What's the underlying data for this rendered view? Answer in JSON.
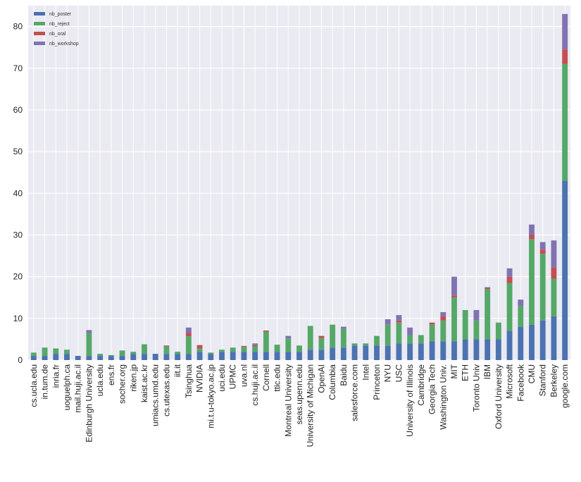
{
  "chart_data": {
    "type": "bar",
    "stacked": true,
    "categories": [
      "cs.ucla.edu",
      "in.tum.de",
      "inria.fr",
      "uoguelph.ca",
      "mail.huji.ac.il",
      "Edinburgh University",
      "ucla.edu",
      "ens.fr",
      "socher.org",
      "riken.jp",
      "kaist.ac.kr",
      "umiacs.umd.edu",
      "cs.utexas.edu",
      "iit.it",
      "Tsinghua",
      "NVIDIA",
      "mi.t.u-tokyo.ac.jp",
      "uci.edu",
      "UPMC",
      "uva.nl",
      "cs.huji.ac.il",
      "Cornell",
      "ttic.edu",
      "Montreal University",
      "seas.upenn.edu",
      "University of Michigan",
      "OpenAI",
      "Columbia",
      "Baidu",
      "salesforce.com",
      "Intel",
      "Princeton",
      "NYU",
      "USC",
      "University of Illinois",
      "Cambridge",
      "Georgia Tech",
      "Washington Univ.",
      "MIT",
      "ETH",
      "Toronto Univ",
      "IBM",
      "Oxford University",
      "Microsoft",
      "Facebook",
      "CMU",
      "Stanford",
      "Berkeley",
      "google.com"
    ],
    "series": [
      {
        "name": "nb_poster",
        "color": "#4c72b0",
        "values": [
          1,
          1,
          1.5,
          1.5,
          1,
          1,
          1,
          1,
          1,
          1.5,
          1.5,
          1.5,
          1.5,
          1.5,
          1.5,
          2,
          1.5,
          2,
          2,
          2,
          2,
          2,
          2,
          2,
          2,
          2.5,
          2.5,
          3,
          3,
          3.5,
          3.5,
          3.5,
          3.5,
          4,
          4,
          4,
          4.5,
          4.5,
          4.5,
          5,
          5,
          5,
          5,
          7,
          8,
          8.5,
          9.5,
          10.5,
          43
        ]
      },
      {
        "name": "nb_reject",
        "color": "#55a868",
        "values": [
          0.8,
          2,
          1.3,
          1,
          0,
          5.5,
          0.5,
          0.2,
          1.3,
          0.5,
          2.3,
          0,
          1.8,
          0.5,
          4.2,
          0.8,
          0.3,
          0.5,
          1,
          1.2,
          1.3,
          4.8,
          1.7,
          3.2,
          1.5,
          5.7,
          2.8,
          5.5,
          4.5,
          0.5,
          0.5,
          2.3,
          5,
          5,
          2,
          2,
          4,
          5,
          10.5,
          7,
          4.5,
          12,
          4,
          11.5,
          5,
          20.5,
          16,
          9,
          28
        ]
      },
      {
        "name": "nb_oral",
        "color": "#c44e52",
        "values": [
          0,
          0,
          0,
          0,
          0,
          0,
          0,
          0,
          0,
          0,
          0,
          0,
          0.2,
          0,
          0.8,
          0.8,
          0,
          0,
          0,
          0.2,
          0.3,
          0.3,
          0,
          0,
          0,
          0,
          0.5,
          0,
          0,
          0,
          0,
          0,
          0,
          0.5,
          0,
          0,
          0.5,
          1,
          0.5,
          0,
          0,
          0.3,
          0,
          1.5,
          0,
          1,
          1,
          2.7,
          3.5
        ]
      },
      {
        "name": "nb_workshop",
        "color": "#8172b2",
        "values": [
          0,
          0,
          0,
          0,
          0,
          0.7,
          0,
          0,
          0,
          0,
          0,
          0,
          0,
          0,
          1.3,
          0,
          0,
          0,
          0,
          0,
          0.4,
          0,
          0,
          0.6,
          0,
          0,
          0,
          0,
          0.5,
          0,
          0,
          0,
          1.3,
          1.3,
          1.8,
          0,
          0,
          1,
          4.5,
          0,
          2.5,
          0.2,
          0,
          2,
          1.5,
          2.5,
          1.8,
          6.5,
          8.5
        ]
      }
    ],
    "ylim": [
      0,
      85
    ],
    "yticks": [
      0,
      10,
      20,
      30,
      40,
      50,
      60,
      70,
      80
    ],
    "grid": true,
    "legend_position": "top-left"
  }
}
